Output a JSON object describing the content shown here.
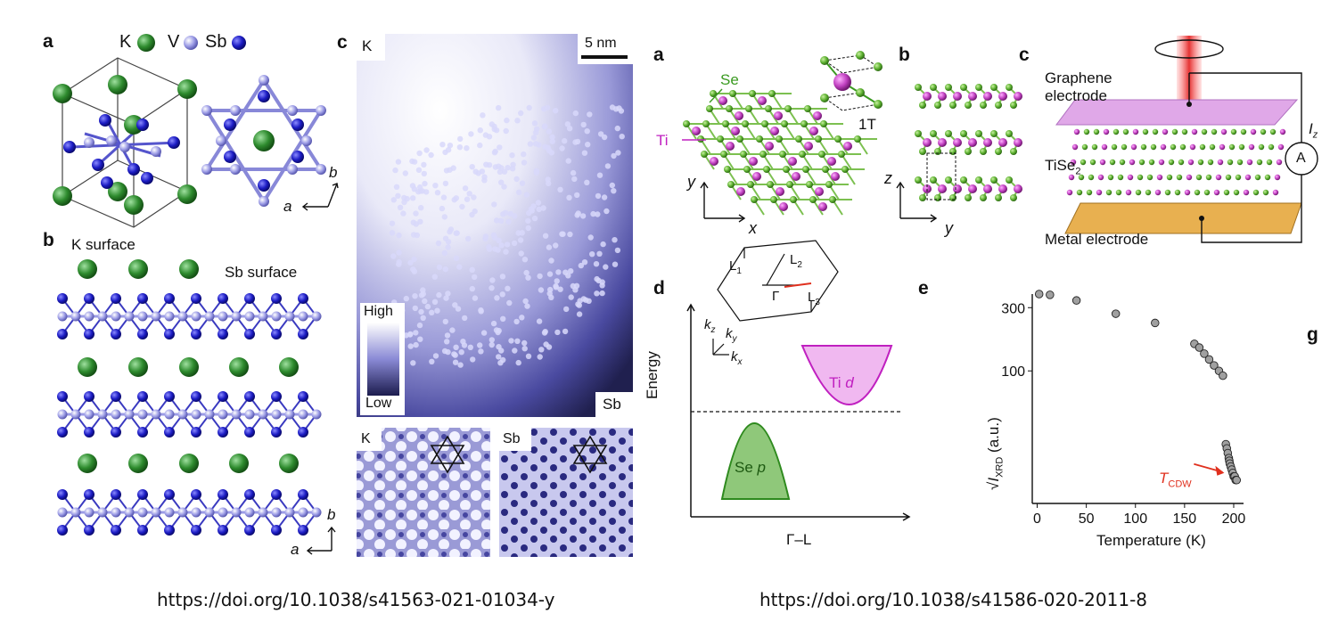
{
  "left_figure": {
    "panel_a": {
      "label": "a",
      "legend": [
        {
          "element": "K",
          "color": "#2e8b2e"
        },
        {
          "element": "V",
          "color": "#9c9ce6"
        },
        {
          "element": "Sb",
          "color": "#1c1cc4"
        }
      ],
      "axis_b": "b",
      "axis_a": "a"
    },
    "panel_b": {
      "label": "b",
      "k_surface": "K surface",
      "sb_surface": "Sb surface",
      "axis_b": "b",
      "axis_a": "a"
    },
    "panel_c": {
      "label": "c",
      "corner_k": "K",
      "scale": "5 nm",
      "colorbar_high": "High",
      "colorbar_low": "Low",
      "corner_sb": "Sb",
      "inset_k": "K",
      "inset_sb": "Sb"
    },
    "doi": "https://doi.org/10.1038/s41563-021-01034-y"
  },
  "right_figure": {
    "panel_a": {
      "label": "a",
      "se": "Se",
      "ti": "Ti",
      "phase": "1T",
      "axis_y": "y",
      "axis_x": "x"
    },
    "panel_b": {
      "label": "b",
      "axis_z": "z",
      "axis_y": "y"
    },
    "panel_c": {
      "label": "c",
      "graphene": "Graphene",
      "electrode": "electrode",
      "tise2": "TiSe",
      "tise2_sub": "2",
      "metal": "Metal electrode",
      "iz": "I",
      "iz_sub": "z",
      "ammeter": "A"
    },
    "panel_d": {
      "label": "d",
      "l1": "L",
      "l1_sub": "1",
      "l2": "L",
      "l2_sub": "2",
      "l3": "L",
      "l3_sub": "3",
      "gamma": "Γ",
      "kz": "k",
      "kz_sub": "z",
      "ky": "k",
      "ky_sub": "y",
      "kx": "k",
      "kx_sub": "x",
      "ylabel": "Energy",
      "xlabel": "Γ–L",
      "ti_d": "Ti",
      "ti_d_orb": "d",
      "se_p": "Se",
      "se_p_orb": "p"
    },
    "panel_e": {
      "label": "e",
      "ylabel_main": "I",
      "ylabel_sub": "XRD",
      "ylabel_unit": "(a.u.)",
      "xlabel": "Temperature (K)",
      "annotation": "T",
      "annotation_sub": "CDW",
      "next_panel_label": "g"
    },
    "doi": "https://doi.org/10.1038/s41586-020-2011-8"
  },
  "chart_data": {
    "type": "scatter",
    "title": "",
    "xlabel": "Temperature (K)",
    "ylabel": "√I_XRD (a.u.)",
    "xlim": [
      -5,
      210
    ],
    "ylim": [
      10,
      380
    ],
    "y_scale": "log",
    "xticks": [
      0,
      50,
      100,
      150,
      200
    ],
    "yticks": [
      100,
      300
    ],
    "x": [
      2,
      13,
      40,
      80,
      120,
      160,
      165,
      170,
      175,
      180,
      185,
      189,
      192,
      193,
      194,
      195,
      195.5,
      196,
      197,
      198,
      199,
      200,
      201,
      202,
      203
    ],
    "y": [
      380,
      375,
      340,
      270,
      230,
      160,
      150,
      135,
      122,
      110,
      100,
      92,
      28,
      26,
      24,
      22,
      21,
      20,
      19,
      18,
      17,
      16,
      16,
      15,
      15
    ],
    "marker_color": "#a0a0a0",
    "annotation_color": "#e0301e"
  }
}
